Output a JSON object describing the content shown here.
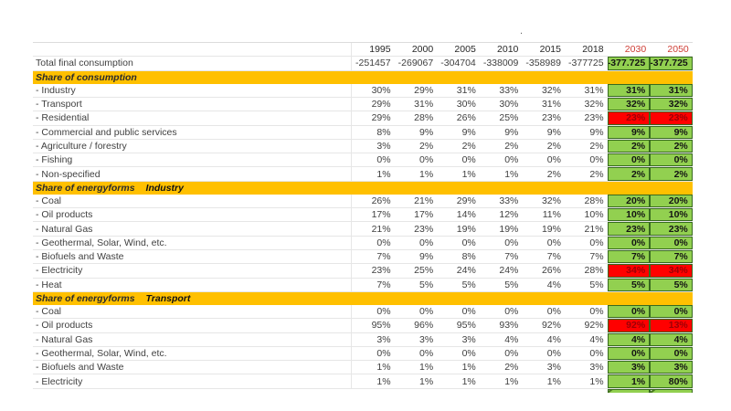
{
  "artifact_dot": ".",
  "colors": {
    "section_fill": "#FFC000",
    "scenario_green_fill": "#92D050",
    "scenario_green_border": "#376A1E",
    "alert_red_fill": "#FF0000",
    "alert_red_text": "#9C0006",
    "future_header_red": "#CE3D35"
  },
  "table": {
    "columns": [
      "1995",
      "2000",
      "2005",
      "2010",
      "2015",
      "2018",
      "2030",
      "2050"
    ],
    "rows": [
      {
        "type": "total",
        "label": "Total final consumption",
        "values": [
          "-251457",
          "-269067",
          "-304704",
          "-338009",
          "-358989",
          "-377725"
        ],
        "future": [
          {
            "value": "-377.725",
            "state": "green"
          },
          {
            "value": "-377.725",
            "state": "green"
          }
        ]
      },
      {
        "type": "section",
        "label": "Share of consumption",
        "sublabel": ""
      },
      {
        "type": "data",
        "label": "- Industry",
        "values": [
          "30%",
          "29%",
          "31%",
          "33%",
          "32%",
          "31%"
        ],
        "future": [
          {
            "value": "31%",
            "state": "green"
          },
          {
            "value": "31%",
            "state": "green"
          }
        ]
      },
      {
        "type": "data",
        "label": "- Transport",
        "values": [
          "29%",
          "31%",
          "30%",
          "30%",
          "31%",
          "32%"
        ],
        "future": [
          {
            "value": "32%",
            "state": "green"
          },
          {
            "value": "32%",
            "state": "green"
          }
        ]
      },
      {
        "type": "data",
        "label": "- Residential",
        "values": [
          "29%",
          "28%",
          "26%",
          "25%",
          "23%",
          "23%"
        ],
        "future": [
          {
            "value": "23%",
            "state": "red"
          },
          {
            "value": "23%",
            "state": "red"
          }
        ]
      },
      {
        "type": "data",
        "label": "- Commercial and public services",
        "values": [
          "8%",
          "9%",
          "9%",
          "9%",
          "9%",
          "9%"
        ],
        "future": [
          {
            "value": "9%",
            "state": "green"
          },
          {
            "value": "9%",
            "state": "green"
          }
        ]
      },
      {
        "type": "data",
        "label": "- Agriculture / forestry",
        "values": [
          "3%",
          "2%",
          "2%",
          "2%",
          "2%",
          "2%"
        ],
        "future": [
          {
            "value": "2%",
            "state": "green"
          },
          {
            "value": "2%",
            "state": "green"
          }
        ]
      },
      {
        "type": "data",
        "label": "- Fishing",
        "values": [
          "0%",
          "0%",
          "0%",
          "0%",
          "0%",
          "0%"
        ],
        "future": [
          {
            "value": "0%",
            "state": "green"
          },
          {
            "value": "0%",
            "state": "green"
          }
        ]
      },
      {
        "type": "data",
        "label": "- Non-specified",
        "values": [
          "1%",
          "1%",
          "1%",
          "1%",
          "2%",
          "2%"
        ],
        "future": [
          {
            "value": "2%",
            "state": "green"
          },
          {
            "value": "2%",
            "state": "green"
          }
        ]
      },
      {
        "type": "section",
        "label": "Share of energyforms",
        "sublabel": "Industry"
      },
      {
        "type": "data",
        "label": "- Coal",
        "values": [
          "26%",
          "21%",
          "29%",
          "33%",
          "32%",
          "28%"
        ],
        "future": [
          {
            "value": "20%",
            "state": "green"
          },
          {
            "value": "20%",
            "state": "green"
          }
        ]
      },
      {
        "type": "data",
        "label": "- Oil products",
        "values": [
          "17%",
          "17%",
          "14%",
          "12%",
          "11%",
          "10%"
        ],
        "future": [
          {
            "value": "10%",
            "state": "green"
          },
          {
            "value": "10%",
            "state": "green"
          }
        ]
      },
      {
        "type": "data",
        "label": "- Natural Gas",
        "values": [
          "21%",
          "23%",
          "19%",
          "19%",
          "19%",
          "21%"
        ],
        "future": [
          {
            "value": "23%",
            "state": "green"
          },
          {
            "value": "23%",
            "state": "green"
          }
        ]
      },
      {
        "type": "data",
        "label": "- Geothermal, Solar, Wind, etc.",
        "values": [
          "0%",
          "0%",
          "0%",
          "0%",
          "0%",
          "0%"
        ],
        "future": [
          {
            "value": "0%",
            "state": "green"
          },
          {
            "value": "0%",
            "state": "green"
          }
        ]
      },
      {
        "type": "data",
        "label": "- Biofuels and Waste",
        "values": [
          "7%",
          "9%",
          "8%",
          "7%",
          "7%",
          "7%"
        ],
        "future": [
          {
            "value": "7%",
            "state": "green"
          },
          {
            "value": "7%",
            "state": "green"
          }
        ]
      },
      {
        "type": "data",
        "label": "- Electricity",
        "values": [
          "23%",
          "25%",
          "24%",
          "24%",
          "26%",
          "28%"
        ],
        "future": [
          {
            "value": "34%",
            "state": "red"
          },
          {
            "value": "34%",
            "state": "red"
          }
        ]
      },
      {
        "type": "data",
        "label": "- Heat",
        "values": [
          "7%",
          "5%",
          "5%",
          "5%",
          "4%",
          "5%"
        ],
        "future": [
          {
            "value": "5%",
            "state": "green"
          },
          {
            "value": "5%",
            "state": "green"
          }
        ]
      },
      {
        "type": "section",
        "label": "Share of energyforms",
        "sublabel": "Transport"
      },
      {
        "type": "data",
        "label": "- Coal",
        "values": [
          "0%",
          "0%",
          "0%",
          "0%",
          "0%",
          "0%"
        ],
        "future": [
          {
            "value": "0%",
            "state": "green"
          },
          {
            "value": "0%",
            "state": "green"
          }
        ]
      },
      {
        "type": "data",
        "label": "- Oil products",
        "values": [
          "95%",
          "96%",
          "95%",
          "93%",
          "92%",
          "92%"
        ],
        "future": [
          {
            "value": "92%",
            "state": "red"
          },
          {
            "value": "13%",
            "state": "red"
          }
        ]
      },
      {
        "type": "data",
        "label": "- Natural Gas",
        "values": [
          "3%",
          "3%",
          "3%",
          "4%",
          "4%",
          "4%"
        ],
        "future": [
          {
            "value": "4%",
            "state": "green"
          },
          {
            "value": "4%",
            "state": "green"
          }
        ]
      },
      {
        "type": "data",
        "label": "- Geothermal, Solar, Wind, etc.",
        "values": [
          "0%",
          "0%",
          "0%",
          "0%",
          "0%",
          "0%"
        ],
        "future": [
          {
            "value": "0%",
            "state": "green"
          },
          {
            "value": "0%",
            "state": "green"
          }
        ]
      },
      {
        "type": "data",
        "label": "- Biofuels and Waste",
        "values": [
          "1%",
          "1%",
          "1%",
          "2%",
          "3%",
          "3%"
        ],
        "future": [
          {
            "value": "3%",
            "state": "green"
          },
          {
            "value": "3%",
            "state": "green"
          }
        ]
      },
      {
        "type": "data",
        "label": "- Electricity",
        "values": [
          "1%",
          "1%",
          "1%",
          "1%",
          "1%",
          "1%"
        ],
        "future": [
          {
            "value": "1%",
            "state": "green"
          },
          {
            "value": "80%",
            "state": "green"
          }
        ]
      }
    ]
  }
}
